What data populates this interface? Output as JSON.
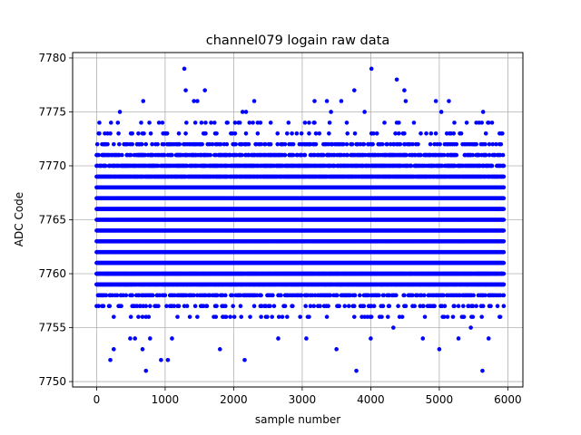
{
  "chart_data": {
    "type": "scatter",
    "title": "channel079 logain raw data",
    "xlabel": "sample number",
    "ylabel": "ADC Code",
    "xlim": [
      -350,
      6220
    ],
    "ylim": [
      7749.5,
      7780.5
    ],
    "xticks": [
      0,
      1000,
      2000,
      3000,
      4000,
      5000,
      6000
    ],
    "yticks": [
      7750,
      7755,
      7760,
      7765,
      7770,
      7775,
      7780
    ],
    "grid": true,
    "marker_color": "#0000ff",
    "n_samples": 5950,
    "x_step": 10,
    "band_low": 7759,
    "band_high": 7768,
    "band_density": [
      {
        "value": 7756,
        "fraction": 0.1
      },
      {
        "value": 7757,
        "fraction": 0.22
      },
      {
        "value": 7758,
        "fraction": 0.4
      },
      {
        "value": 7759,
        "fraction": 0.66
      },
      {
        "value": 7760,
        "fraction": 0.88
      },
      {
        "value": 7769,
        "fraction": 0.92
      },
      {
        "value": 7770,
        "fraction": 0.72
      },
      {
        "value": 7771,
        "fraction": 0.48
      },
      {
        "value": 7772,
        "fraction": 0.28
      },
      {
        "value": 7773,
        "fraction": 0.14
      },
      {
        "value": 7774,
        "fraction": 0.06
      }
    ],
    "outliers": [
      {
        "x": 200,
        "y": 7752
      },
      {
        "x": 250,
        "y": 7753
      },
      {
        "x": 210,
        "y": 7774
      },
      {
        "x": 340,
        "y": 7775
      },
      {
        "x": 490,
        "y": 7754
      },
      {
        "x": 560,
        "y": 7754
      },
      {
        "x": 670,
        "y": 7753
      },
      {
        "x": 680,
        "y": 7776
      },
      {
        "x": 720,
        "y": 7751
      },
      {
        "x": 780,
        "y": 7754
      },
      {
        "x": 940,
        "y": 7752
      },
      {
        "x": 1040,
        "y": 7752
      },
      {
        "x": 1100,
        "y": 7754
      },
      {
        "x": 1280,
        "y": 7779
      },
      {
        "x": 1300,
        "y": 7777
      },
      {
        "x": 1420,
        "y": 7776
      },
      {
        "x": 1470,
        "y": 7776
      },
      {
        "x": 1580,
        "y": 7777
      },
      {
        "x": 1800,
        "y": 7753
      },
      {
        "x": 2130,
        "y": 7775
      },
      {
        "x": 2160,
        "y": 7752
      },
      {
        "x": 2180,
        "y": 7775
      },
      {
        "x": 2300,
        "y": 7776
      },
      {
        "x": 2650,
        "y": 7754
      },
      {
        "x": 3060,
        "y": 7754
      },
      {
        "x": 3180,
        "y": 7776
      },
      {
        "x": 3360,
        "y": 7776
      },
      {
        "x": 3420,
        "y": 7775
      },
      {
        "x": 3500,
        "y": 7753
      },
      {
        "x": 3570,
        "y": 7776
      },
      {
        "x": 3650,
        "y": 7774
      },
      {
        "x": 3760,
        "y": 7777
      },
      {
        "x": 3790,
        "y": 7751
      },
      {
        "x": 3910,
        "y": 7775
      },
      {
        "x": 4010,
        "y": 7779
      },
      {
        "x": 4000,
        "y": 7754
      },
      {
        "x": 4330,
        "y": 7755
      },
      {
        "x": 4380,
        "y": 7778
      },
      {
        "x": 4490,
        "y": 7777
      },
      {
        "x": 4510,
        "y": 7776
      },
      {
        "x": 4760,
        "y": 7754
      },
      {
        "x": 4950,
        "y": 7776
      },
      {
        "x": 5000,
        "y": 7753
      },
      {
        "x": 5030,
        "y": 7775
      },
      {
        "x": 5140,
        "y": 7776
      },
      {
        "x": 5280,
        "y": 7754
      },
      {
        "x": 5460,
        "y": 7755
      },
      {
        "x": 5630,
        "y": 7751
      },
      {
        "x": 5640,
        "y": 7775
      },
      {
        "x": 5720,
        "y": 7754
      }
    ]
  }
}
